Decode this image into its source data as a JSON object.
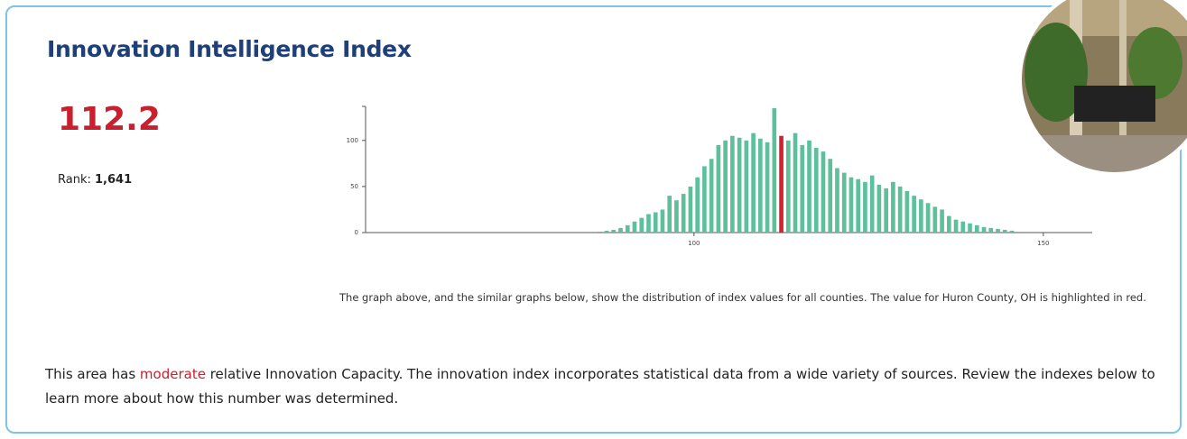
{
  "header": {
    "title": "Innovation Intelligence Index"
  },
  "score": 112.2,
  "rank_label": "Rank:",
  "rank": "1,641",
  "chart_data": {
    "type": "histogram",
    "bins": [
      86,
      87,
      88,
      89,
      90,
      91,
      92,
      93,
      94,
      95,
      96,
      97,
      98,
      99,
      100,
      101,
      102,
      103,
      104,
      105,
      106,
      107,
      108,
      109,
      110,
      111,
      112,
      113,
      114,
      115,
      116,
      117,
      118,
      119,
      120,
      121,
      122,
      123,
      124,
      125,
      126,
      127,
      128,
      129,
      130,
      131,
      132,
      133,
      134,
      135,
      136,
      137,
      138,
      139,
      140,
      141,
      142,
      143,
      144,
      145,
      146
    ],
    "counts": [
      1,
      2,
      3,
      5,
      8,
      12,
      16,
      20,
      22,
      25,
      40,
      35,
      42,
      50,
      60,
      72,
      80,
      95,
      100,
      105,
      103,
      100,
      108,
      102,
      98,
      135,
      105,
      100,
      108,
      95,
      100,
      92,
      88,
      80,
      70,
      65,
      60,
      58,
      55,
      62,
      52,
      48,
      55,
      50,
      45,
      40,
      36,
      32,
      28,
      25,
      18,
      14,
      12,
      10,
      8,
      6,
      5,
      4,
      3,
      2
    ],
    "color": "#5dbf9c",
    "highlight_color": "#d4202c",
    "xlim": [
      53,
      157
    ],
    "ylim": [
      0,
      137
    ],
    "xticks": [
      100,
      150
    ],
    "yticks": [
      0,
      50,
      100
    ]
  },
  "caption": "The graph above, and the similar graphs below, show the distribution of index values for all counties. The value for Huron County, OH is highlighted in red.",
  "description": {
    "before": "This area has ",
    "level": "moderate",
    "after": " relative Innovation Capacity. The innovation index incorporates statistical data from a wide variety of sources. Review the indexes below to learn more about how this number was determined."
  }
}
